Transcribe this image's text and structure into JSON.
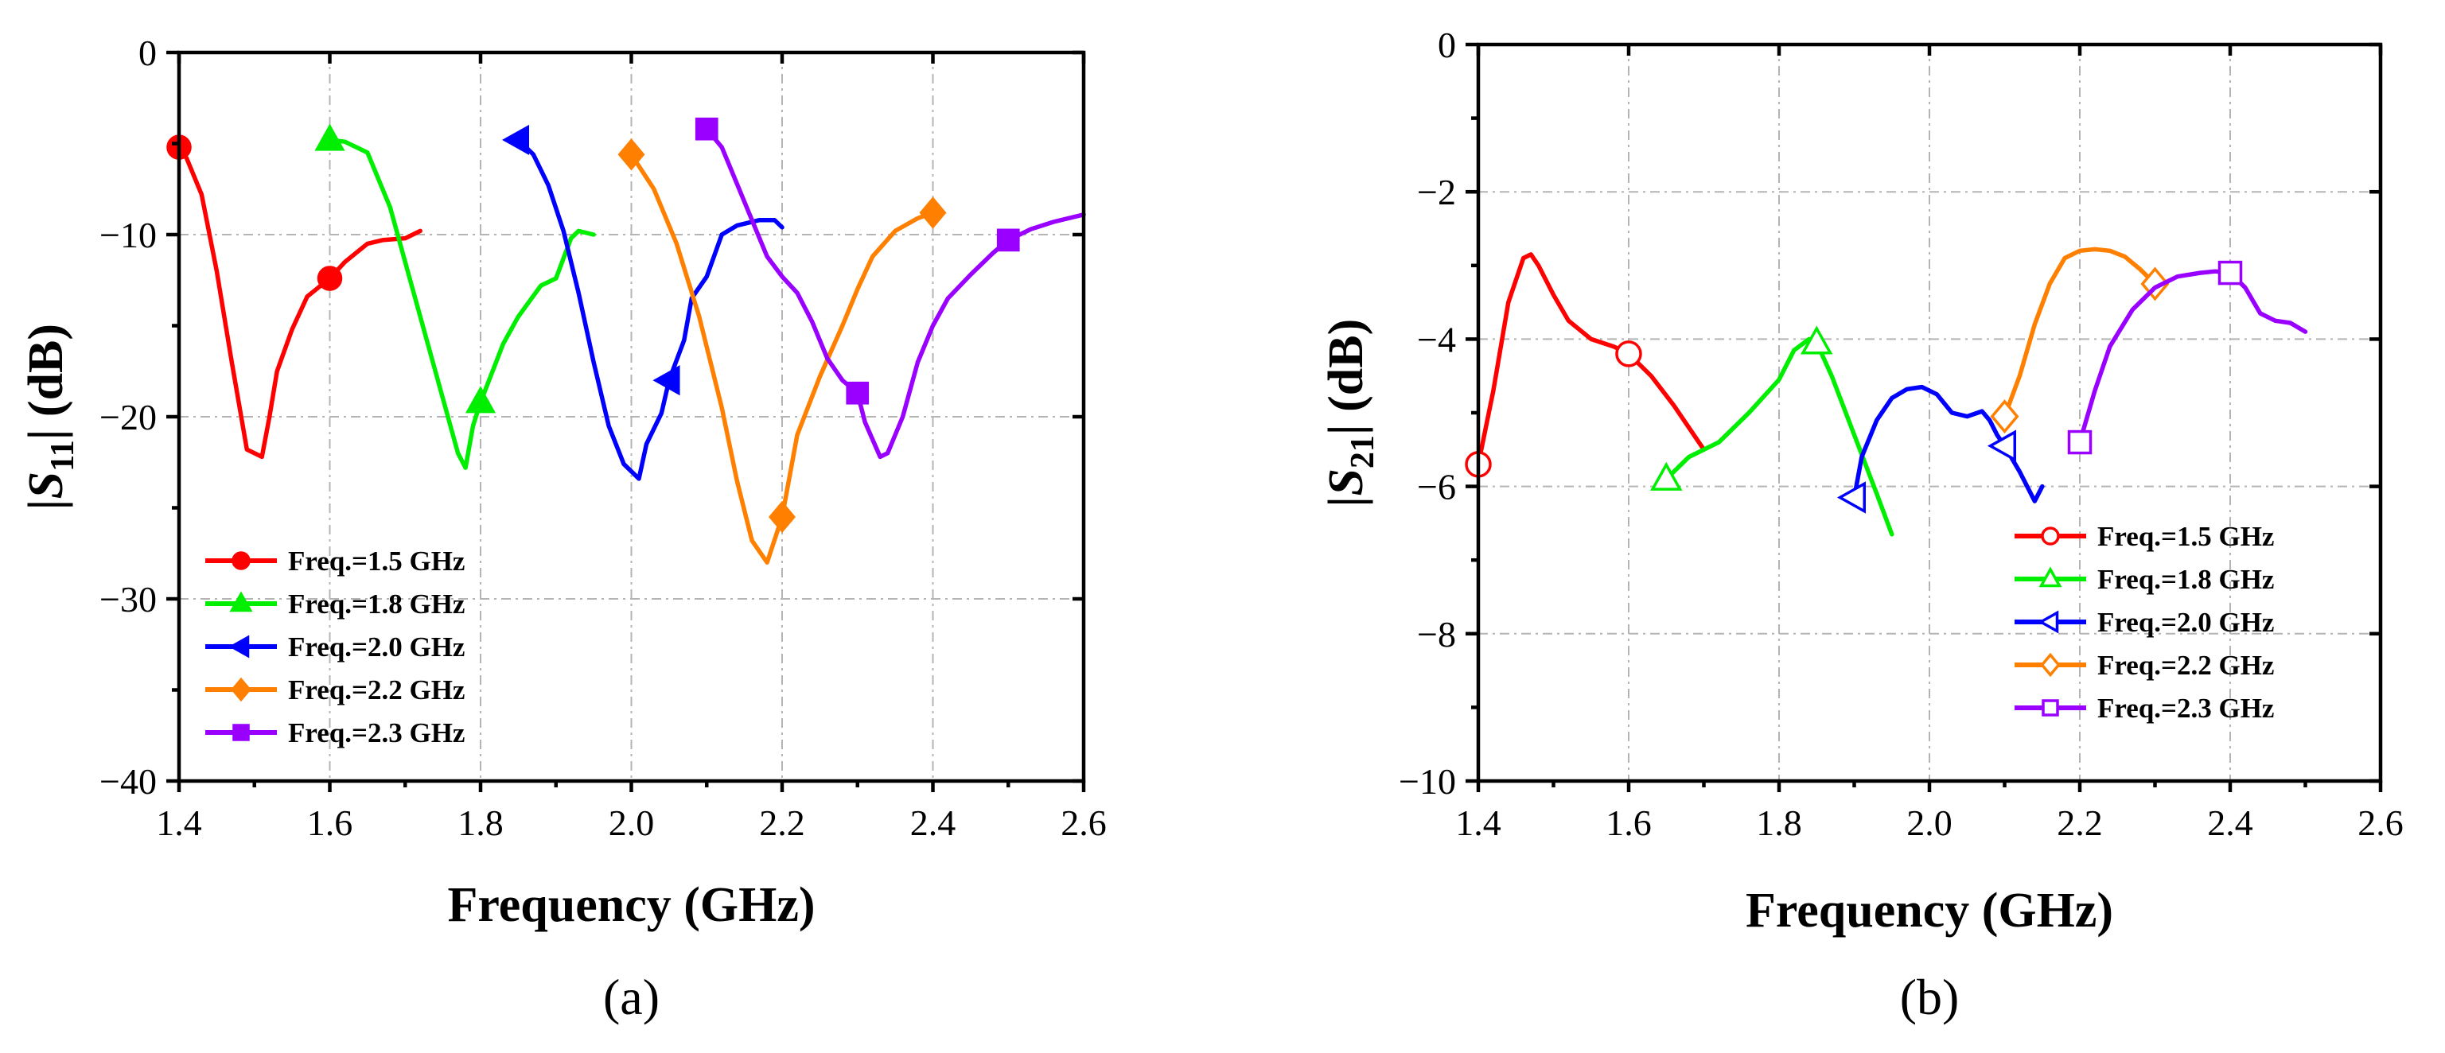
{
  "chart_data": [
    {
      "type": "line",
      "panel_label": "(a)",
      "xlabel": "Frequency (GHz)",
      "ylabel_main": "|S",
      "ylabel_sub": "11",
      "ylabel_tail": "| (dB)",
      "xlim": [
        1.4,
        2.6
      ],
      "ylim": [
        -40,
        0
      ],
      "xticks": [
        1.4,
        1.6,
        1.8,
        2.0,
        2.2,
        2.4,
        2.6
      ],
      "xtick_labels": [
        "1.4",
        "1.6",
        "1.8",
        "2.0",
        "2.2",
        "2.4",
        "2.6"
      ],
      "yticks": [
        0,
        -10,
        -20,
        -30,
        -40
      ],
      "ytick_labels": [
        "0",
        "−10",
        "−20",
        "−30",
        "−40"
      ],
      "grid": true,
      "legend_position": "bottom-left",
      "marker_fill": "filled",
      "series": [
        {
          "name": "Freq.=1.5 GHz",
          "color": "#ff0000",
          "marker": "circle",
          "x": [
            1.4,
            1.41,
            1.43,
            1.45,
            1.47,
            1.49,
            1.51,
            1.52,
            1.53,
            1.55,
            1.57,
            1.6,
            1.62,
            1.65,
            1.67,
            1.7,
            1.72
          ],
          "y": [
            -5.2,
            -5.8,
            -7.8,
            -12,
            -17,
            -21.8,
            -22.2,
            -20,
            -17.5,
            -15.2,
            -13.4,
            -12.4,
            -11.5,
            -10.5,
            -10.3,
            -10.2,
            -9.8
          ],
          "marker_x": [
            1.4,
            1.6
          ],
          "marker_y": [
            -5.2,
            -12.4
          ]
        },
        {
          "name": "Freq.=1.8 GHz",
          "color": "#00ee00",
          "marker": "triangle-up",
          "x": [
            1.6,
            1.62,
            1.65,
            1.68,
            1.71,
            1.74,
            1.77,
            1.78,
            1.79,
            1.8,
            1.83,
            1.85,
            1.88,
            1.9,
            1.92,
            1.93,
            1.95
          ],
          "y": [
            -4.8,
            -4.9,
            -5.5,
            -8.5,
            -13,
            -17.5,
            -22,
            -22.8,
            -20.5,
            -19.2,
            -16,
            -14.5,
            -12.8,
            -12.4,
            -10.2,
            -9.8,
            -10
          ],
          "marker_x": [
            1.6,
            1.8
          ],
          "marker_y": [
            -4.8,
            -19.2
          ]
        },
        {
          "name": "Freq.=2.0 GHz",
          "color": "#0000ff",
          "marker": "triangle-left",
          "x": [
            1.85,
            1.87,
            1.89,
            1.91,
            1.93,
            1.95,
            1.97,
            1.99,
            2.01,
            2.02,
            2.04,
            2.05,
            2.07,
            2.08,
            2.1,
            2.12,
            2.14,
            2.17,
            2.19,
            2.2
          ],
          "y": [
            -4.8,
            -5.6,
            -7.3,
            -9.8,
            -13.2,
            -17,
            -20.5,
            -22.6,
            -23.4,
            -21.5,
            -19.8,
            -18,
            -15.8,
            -13.5,
            -12.3,
            -10,
            -9.5,
            -9.2,
            -9.2,
            -9.6
          ],
          "marker_x": [
            1.85,
            2.05
          ],
          "marker_y": [
            -4.8,
            -18
          ]
        },
        {
          "name": "Freq.=2.2 GHz",
          "color": "#ff8000",
          "marker": "diamond",
          "x": [
            2.0,
            2.03,
            2.06,
            2.09,
            2.12,
            2.14,
            2.16,
            2.18,
            2.2,
            2.22,
            2.25,
            2.28,
            2.3,
            2.32,
            2.35,
            2.38,
            2.4
          ],
          "y": [
            -5.6,
            -7.5,
            -10.5,
            -14.5,
            -19.5,
            -23.5,
            -26.8,
            -28,
            -25.5,
            -21,
            -17.8,
            -15,
            -13,
            -11.2,
            -9.8,
            -9.1,
            -8.8
          ],
          "marker_x": [
            2.0,
            2.2,
            2.4
          ],
          "marker_y": [
            -5.6,
            -25.5,
            -8.8
          ]
        },
        {
          "name": "Freq.=2.3 GHz",
          "color": "#9900ff",
          "marker": "square",
          "x": [
            2.1,
            2.12,
            2.14,
            2.16,
            2.18,
            2.2,
            2.22,
            2.24,
            2.26,
            2.28,
            2.3,
            2.31,
            2.33,
            2.34,
            2.36,
            2.38,
            2.4,
            2.42,
            2.45,
            2.48,
            2.5,
            2.53,
            2.56,
            2.6
          ],
          "y": [
            -4.2,
            -5.2,
            -7.2,
            -9.2,
            -11.2,
            -12.3,
            -13.2,
            -14.8,
            -16.8,
            -18,
            -18.7,
            -20.3,
            -22.2,
            -22,
            -20,
            -17,
            -15,
            -13.5,
            -12.2,
            -11,
            -10.3,
            -9.7,
            -9.3,
            -8.9
          ],
          "marker_x": [
            2.1,
            2.3,
            2.5
          ],
          "marker_y": [
            -4.2,
            -18.7,
            -10.3
          ]
        }
      ]
    },
    {
      "type": "line",
      "panel_label": "(b)",
      "xlabel": "Frequency (GHz)",
      "ylabel_main": "|S",
      "ylabel_sub": "21",
      "ylabel_tail": "| (dB)",
      "xlim": [
        1.4,
        2.6
      ],
      "ylim": [
        -10,
        0
      ],
      "xticks": [
        1.4,
        1.6,
        1.8,
        2.0,
        2.2,
        2.4,
        2.6
      ],
      "xtick_labels": [
        "1.4",
        "1.6",
        "1.8",
        "2.0",
        "2.2",
        "2.4",
        "2.6"
      ],
      "yticks": [
        0,
        -2,
        -4,
        -6,
        -8,
        -10
      ],
      "ytick_labels": [
        "0",
        "−2",
        "−4",
        "−6",
        "−8",
        "−10"
      ],
      "grid": true,
      "legend_position": "bottom-right",
      "marker_fill": "open",
      "series": [
        {
          "name": "Freq.=1.5 GHz",
          "color": "#ff0000",
          "marker": "circle",
          "x": [
            1.4,
            1.42,
            1.44,
            1.46,
            1.47,
            1.48,
            1.5,
            1.52,
            1.55,
            1.58,
            1.6,
            1.63,
            1.66,
            1.7
          ],
          "y": [
            -5.7,
            -4.7,
            -3.5,
            -2.9,
            -2.85,
            -3.0,
            -3.4,
            -3.75,
            -4.0,
            -4.1,
            -4.2,
            -4.5,
            -4.9,
            -5.5
          ],
          "marker_x": [
            1.4,
            1.6
          ],
          "marker_y": [
            -5.7,
            -4.2
          ]
        },
        {
          "name": "Freq.=1.8 GHz",
          "color": "#00ee00",
          "marker": "triangle-up",
          "x": [
            1.65,
            1.68,
            1.72,
            1.76,
            1.8,
            1.82,
            1.84,
            1.85,
            1.87,
            1.9,
            1.93,
            1.95
          ],
          "y": [
            -5.9,
            -5.6,
            -5.4,
            -5.0,
            -4.55,
            -4.15,
            -4.0,
            -4.05,
            -4.5,
            -5.3,
            -6.1,
            -6.65
          ],
          "marker_x": [
            1.65,
            1.85
          ],
          "marker_y": [
            -5.9,
            -4.05
          ]
        },
        {
          "name": "Freq.=2.0 GHz",
          "color": "#0000ff",
          "marker": "triangle-left",
          "x": [
            1.9,
            1.91,
            1.93,
            1.95,
            1.97,
            1.99,
            2.01,
            2.03,
            2.05,
            2.07,
            2.08,
            2.09,
            2.1,
            2.12,
            2.14,
            2.15
          ],
          "y": [
            -6.15,
            -5.6,
            -5.1,
            -4.8,
            -4.68,
            -4.65,
            -4.75,
            -5.0,
            -5.05,
            -4.98,
            -5.1,
            -5.3,
            -5.45,
            -5.8,
            -6.2,
            -6.0
          ],
          "marker_x": [
            1.9,
            2.1
          ],
          "marker_y": [
            -6.15,
            -5.45
          ]
        },
        {
          "name": "Freq.=2.2 GHz",
          "color": "#ff8000",
          "marker": "diamond",
          "x": [
            2.1,
            2.12,
            2.14,
            2.16,
            2.18,
            2.2,
            2.22,
            2.24,
            2.26,
            2.28,
            2.3
          ],
          "y": [
            -5.05,
            -4.5,
            -3.8,
            -3.25,
            -2.9,
            -2.8,
            -2.78,
            -2.8,
            -2.88,
            -3.05,
            -3.25
          ],
          "marker_x": [
            2.1,
            2.3
          ],
          "marker_y": [
            -5.05,
            -3.25
          ]
        },
        {
          "name": "Freq.=2.3 GHz",
          "color": "#9900ff",
          "marker": "square",
          "x": [
            2.2,
            2.22,
            2.24,
            2.27,
            2.3,
            2.33,
            2.36,
            2.38,
            2.4,
            2.42,
            2.44,
            2.46,
            2.48,
            2.5
          ],
          "y": [
            -5.4,
            -4.7,
            -4.1,
            -3.6,
            -3.3,
            -3.15,
            -3.1,
            -3.08,
            -3.1,
            -3.3,
            -3.65,
            -3.75,
            -3.78,
            -3.9
          ],
          "marker_x": [
            2.2,
            2.4
          ],
          "marker_y": [
            -5.4,
            -3.1
          ]
        }
      ]
    }
  ]
}
